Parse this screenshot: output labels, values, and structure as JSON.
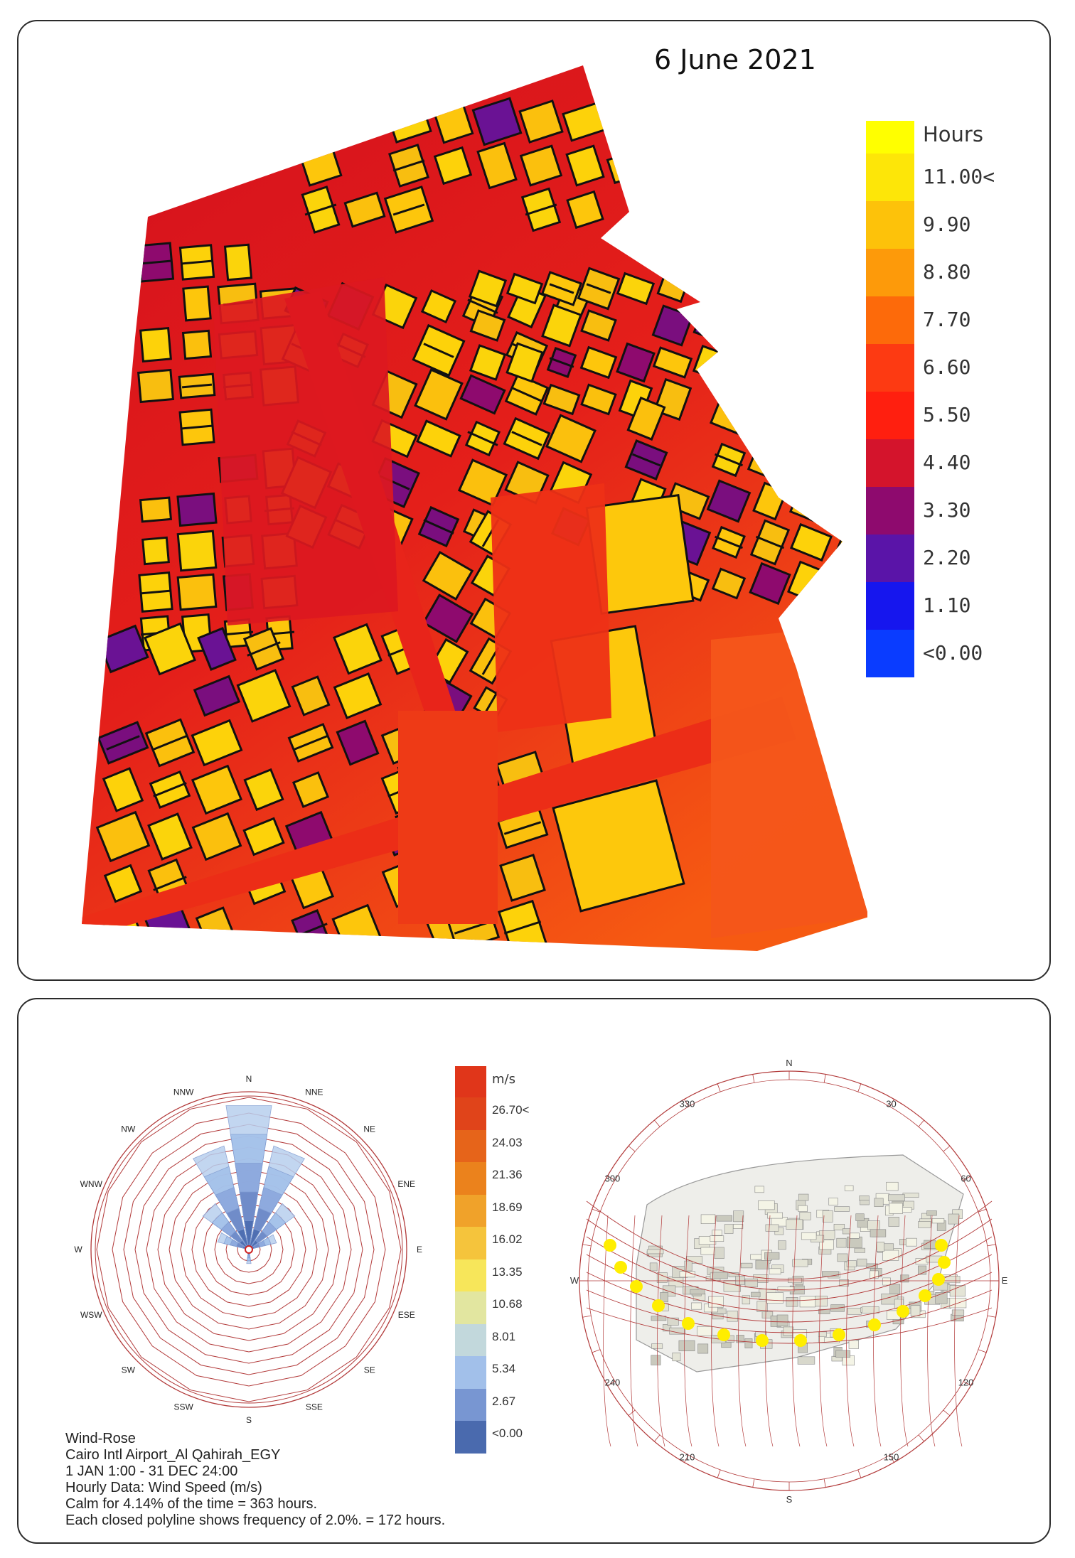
{
  "map_panel": {
    "title": "6 June 2021",
    "legend": {
      "title": "Hours",
      "items": [
        {
          "label": "11.00<",
          "color": "#fde608"
        },
        {
          "label": "9.90",
          "color": "#fdc20a"
        },
        {
          "label": "8.80",
          "color": "#fd9a0a"
        },
        {
          "label": "7.70",
          "color": "#fd6a0a"
        },
        {
          "label": "6.60",
          "color": "#fd3a12"
        },
        {
          "label": "5.50",
          "color": "#ff1f0f"
        },
        {
          "label": "4.40",
          "color": "#d4142c"
        },
        {
          "label": "3.30",
          "color": "#8e0a6e"
        },
        {
          "label": "2.20",
          "color": "#5a14a8"
        },
        {
          "label": "1.10",
          "color": "#1616ee"
        },
        {
          "label": "<0.00",
          "color": "#0a3cff"
        }
      ],
      "top_color": "#ffff00"
    }
  },
  "wind_rose": {
    "directions": [
      "N",
      "NNE",
      "NE",
      "ENE",
      "E",
      "ESE",
      "SE",
      "SSE",
      "S",
      "SSW",
      "SW",
      "WSW",
      "W",
      "WNW",
      "NW",
      "NNW"
    ],
    "legend": {
      "title": "m/s",
      "items": [
        {
          "label": "26.70<",
          "color": "#e0441a"
        },
        {
          "label": "24.03",
          "color": "#e6641a"
        },
        {
          "label": "21.36",
          "color": "#eb821c"
        },
        {
          "label": "18.69",
          "color": "#f0a22a"
        },
        {
          "label": "16.02",
          "color": "#f5c43c"
        },
        {
          "label": "13.35",
          "color": "#f7e65a"
        },
        {
          "label": "10.68",
          "color": "#e2e6a0"
        },
        {
          "label": "8.01",
          "color": "#c2d8dc"
        },
        {
          "label": "5.34",
          "color": "#a2c0ea"
        },
        {
          "label": "2.67",
          "color": "#7896d2"
        },
        {
          "label": "<0.00",
          "color": "#4a6aae"
        }
      ],
      "top_color": "#e0361a"
    },
    "info": {
      "line1": "Wind-Rose",
      "line2": "Cairo Intl Airport_Al Qahirah_EGY",
      "line3": "1 JAN 1:00 - 31 DEC 24:00",
      "line4": "Hourly Data: Wind Speed (m/s)",
      "line5": "Calm for 4.14% of the time = 363 hours.",
      "line6": "Each closed polyline shows frequency of 2.0%. = 172 hours."
    }
  },
  "sun_path": {
    "cardinals": {
      "n": "N",
      "e": "E",
      "s": "S",
      "w": "W"
    },
    "azimuths": [
      "330",
      "30",
      "60",
      "120",
      "150",
      "210",
      "240",
      "300"
    ],
    "sun_color": "#ffee00"
  }
}
